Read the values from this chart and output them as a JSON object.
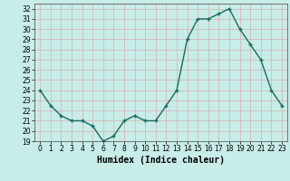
{
  "x": [
    0,
    1,
    2,
    3,
    4,
    5,
    6,
    7,
    8,
    9,
    10,
    11,
    12,
    13,
    14,
    15,
    16,
    17,
    18,
    19,
    20,
    21,
    22,
    23
  ],
  "y": [
    24.0,
    22.5,
    21.5,
    21.0,
    21.0,
    20.5,
    19.0,
    19.5,
    21.0,
    21.5,
    21.0,
    21.0,
    22.5,
    24.0,
    29.0,
    31.0,
    31.0,
    31.5,
    32.0,
    30.0,
    28.5,
    27.0,
    24.0,
    22.5
  ],
  "xlabel": "Humidex (Indice chaleur)",
  "xlim": [
    -0.5,
    23.5
  ],
  "ylim": [
    19,
    32.5
  ],
  "yticks": [
    19,
    20,
    21,
    22,
    23,
    24,
    25,
    26,
    27,
    28,
    29,
    30,
    31,
    32
  ],
  "xticks": [
    0,
    1,
    2,
    3,
    4,
    5,
    6,
    7,
    8,
    9,
    10,
    11,
    12,
    13,
    14,
    15,
    16,
    17,
    18,
    19,
    20,
    21,
    22,
    23
  ],
  "line_color": "#1a6b5e",
  "marker": "+",
  "bg_color": "#c8ece8",
  "grid_color": "#d4b0b0",
  "label_fontsize": 7,
  "tick_fontsize": 5.5,
  "linewidth": 1.0,
  "markersize": 3.5,
  "markeredgewidth": 1.0
}
